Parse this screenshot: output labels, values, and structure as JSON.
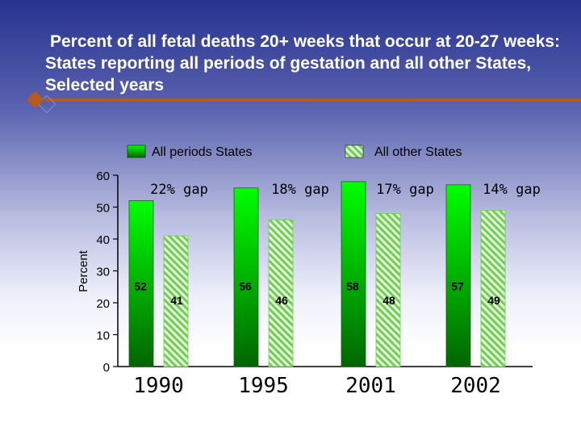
{
  "slide": {
    "title": "Percent of  all fetal deaths 20+ weeks that occur at 20-27 weeks:  States reporting all periods of gestation and all other States, Selected years"
  },
  "colors": {
    "bar_green_top": "#00ff00",
    "bar_green_bottom": "#006600",
    "hatch_green": "#6fcf50",
    "accent": "#b85a1e"
  },
  "chart_data": {
    "type": "bar",
    "categories": [
      "1990",
      "1995",
      "2001",
      "2002"
    ],
    "series": [
      {
        "name": "All periods States",
        "values": [
          52,
          56,
          58,
          57
        ],
        "style": "solid-gradient-green"
      },
      {
        "name": "All other States",
        "values": [
          41,
          46,
          48,
          49
        ],
        "style": "hatched-green"
      }
    ],
    "annotations": [
      "22% gap",
      "18% gap",
      "17% gap",
      "14% gap"
    ],
    "ylabel": "Percent",
    "xlabel": "",
    "ylim": [
      0,
      60
    ],
    "yticks": [
      0,
      10,
      20,
      30,
      40,
      50,
      60
    ],
    "legend_position": "top",
    "grid": false
  }
}
